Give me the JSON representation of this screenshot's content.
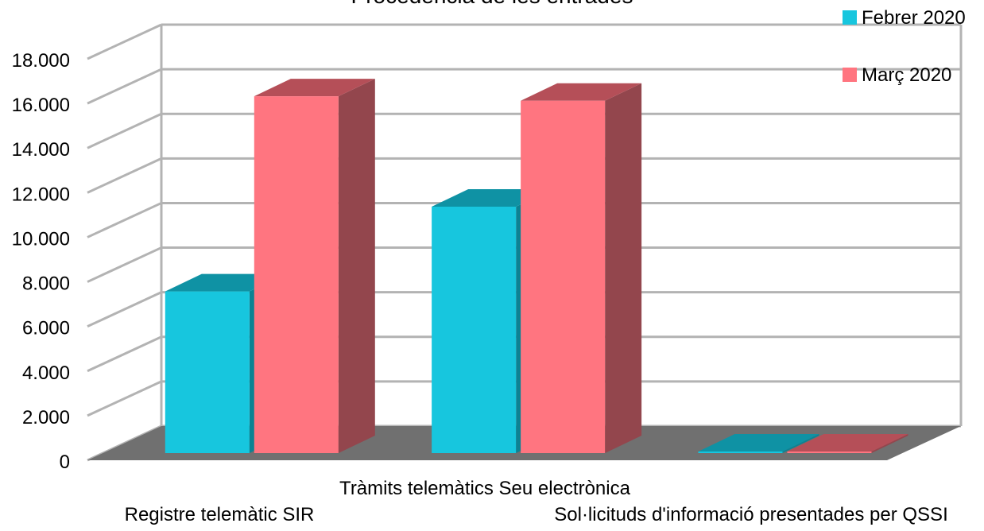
{
  "chart_data": {
    "type": "bar",
    "title": "Procedència de les entrades",
    "xlabel": "",
    "ylabel": "",
    "categories": [
      "Registre telemàtic SIR",
      "Tràmits telemàtics Seu electrònica",
      "Sol·licituds d'informació presentades per QSSI"
    ],
    "series": [
      {
        "name": "Febrer 2020",
        "values": [
          7250,
          11050,
          0
        ]
      },
      {
        "name": "Març 2020",
        "values": [
          16000,
          15800,
          0
        ]
      }
    ],
    "ylim": [
      0,
      18000
    ],
    "yticks": [
      0,
      2000,
      4000,
      6000,
      8000,
      10000,
      12000,
      14000,
      16000,
      18000
    ],
    "ytick_labels": [
      "0",
      "2.000",
      "4.000",
      "6.000",
      "8.000",
      "10.000",
      "12.000",
      "14.000",
      "16.000",
      "18.000"
    ],
    "grid": true,
    "legend_position": "top-right",
    "colors": {
      "Febrer 2020": {
        "front": "#17c6de",
        "side": "#0c8293",
        "top": "#0f92a4"
      },
      "Març 2020": {
        "front": "#ff7580",
        "side": "#93464d",
        "top": "#b54f58"
      },
      "floor": "#707070",
      "grid": "#b3b3b3"
    }
  }
}
